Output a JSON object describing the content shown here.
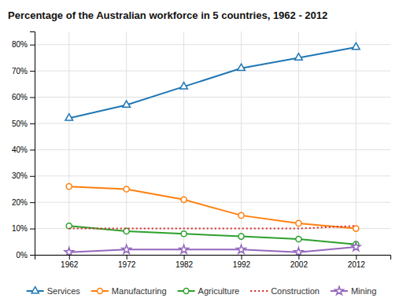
{
  "chart_data": {
    "type": "line",
    "title": "Percentage of the Australian workforce in 5 countries, 1962 - 2012",
    "x": [
      1962,
      1972,
      1982,
      1992,
      2002,
      2012
    ],
    "xlim": [
      1956,
      2018
    ],
    "xticks": [
      1962,
      1972,
      1982,
      1992,
      2002,
      2012
    ],
    "ylim": [
      0,
      85
    ],
    "yticks": [
      {
        "value": 0,
        "label": "0%"
      },
      {
        "value": 10,
        "label": "10%"
      },
      {
        "value": 20,
        "label": "20%"
      },
      {
        "value": 30,
        "label": "30%"
      },
      {
        "value": 40,
        "label": "40%"
      },
      {
        "value": 50,
        "label": "50%"
      },
      {
        "value": 60,
        "label": "60%"
      },
      {
        "value": 70,
        "label": "70%"
      },
      {
        "value": 80,
        "label": "80%"
      }
    ],
    "grid": true,
    "legend": "bottom",
    "series": [
      {
        "name": "Services",
        "values": [
          52,
          57,
          64,
          71,
          75,
          79
        ],
        "marker": "triangle",
        "line_style": "solid"
      },
      {
        "name": "Manufacturing",
        "values": [
          26,
          25,
          21,
          15,
          12,
          10
        ],
        "marker": "circle",
        "line_style": "solid"
      },
      {
        "name": "Agriculture",
        "values": [
          11,
          9,
          8,
          7,
          6,
          4
        ],
        "marker": "circle",
        "line_style": "solid"
      },
      {
        "name": "Construction",
        "values": [
          10,
          10,
          10,
          10,
          10,
          11
        ],
        "marker": "none",
        "line_style": "dotted"
      },
      {
        "name": "Mining",
        "values": [
          1,
          2,
          2,
          2,
          1,
          3
        ],
        "marker": "star",
        "line_style": "solid"
      }
    ]
  }
}
